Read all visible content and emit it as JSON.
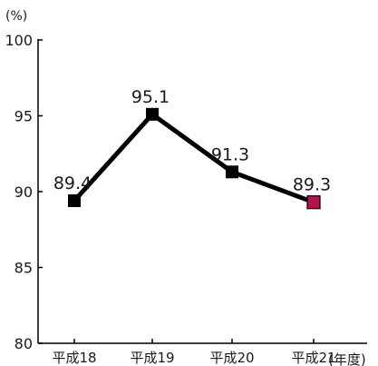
{
  "chart_data": {
    "type": "line",
    "title": "",
    "xlabel": "",
    "ylabel": "",
    "y_unit_label": "(%)",
    "x_unit_label": "(年度)",
    "categories": [
      "平成18",
      "平成19",
      "平成20",
      "平成21"
    ],
    "series": [
      {
        "values": [
          89.4,
          95.1,
          91.3,
          89.3
        ],
        "data_labels": [
          "89.4",
          "95.1",
          "91.3",
          "89.3"
        ]
      }
    ],
    "ylim": [
      80,
      100
    ],
    "yticks": [
      80,
      85,
      90,
      95,
      100
    ],
    "ytick_labels": [
      "80",
      "85",
      "90",
      "95",
      "100"
    ],
    "grid": false,
    "legend": "none",
    "colors": {
      "line": "#000000",
      "marker": "#000000",
      "highlight_marker": "#b0134e",
      "axis": "#000000"
    }
  }
}
